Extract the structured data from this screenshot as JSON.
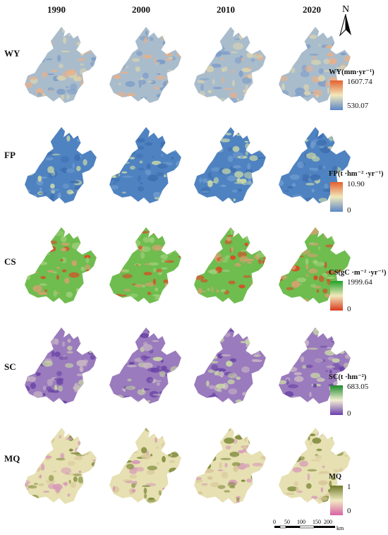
{
  "years": [
    "1990",
    "2000",
    "2010",
    "2020"
  ],
  "north_label": "N",
  "rows": [
    {
      "label": "WY",
      "legend_title": "WY(mm·yr⁻¹)",
      "max": "1607.74",
      "min": "530.07",
      "colors": {
        "bg": "#a9bccc",
        "mid": "#d9d3b0",
        "hi": "#e8b08a",
        "low": "#7d9cc8",
        "bar_top": "#e4602e",
        "bar_mid": "#f1e9bb",
        "bar_bot": "#5b86c6"
      }
    },
    {
      "label": "FP",
      "legend_title": "FP(t ·hm⁻² ·yr⁻¹)",
      "max": "10.90",
      "min": "0",
      "colors": {
        "bg": "#4f82c0",
        "mid": "#6f9ccf",
        "hi": "#c9d8a8",
        "low": "#3e6fb0",
        "bar_top": "#e4602e",
        "bar_mid": "#f1e9bb",
        "bar_bot": "#5b86c6"
      }
    },
    {
      "label": "CS",
      "legend_title": "CS(gC ·m⁻² ·yr⁻¹)",
      "max": "1999.64",
      "min": "0",
      "colors": {
        "bg": "#6fbc4f",
        "mid": "#9fd07a",
        "hi": "#d8a070",
        "low": "#d94a24",
        "bar_top": "#1fa32a",
        "bar_mid": "#f1e9bb",
        "bar_bot": "#d93a1c"
      }
    },
    {
      "label": "SC",
      "legend_title": "SC(t ·hm⁻²)",
      "max": "683.05",
      "min": "0",
      "colors": {
        "bg": "#9a7bbd",
        "mid": "#c7b6c4",
        "hi": "#c9d7a6",
        "low": "#6a44a6",
        "bar_top": "#1b8a2a",
        "bar_mid": "#f2efd2",
        "bar_bot": "#6a3fb0"
      }
    },
    {
      "label": "MQ",
      "legend_title": "MQ",
      "max": "1",
      "min": "0",
      "colors": {
        "bg": "#e6e0b2",
        "mid": "#d9c79a",
        "hi": "#7d8a3a",
        "low": "#d69ab8",
        "bar_top": "#6f7a2a",
        "bar_mid": "#f1ebc2",
        "bar_bot": "#d862a6"
      }
    }
  ],
  "scale": {
    "ticks": [
      "0",
      "50",
      "100",
      "150",
      "200"
    ],
    "unit": "km"
  }
}
